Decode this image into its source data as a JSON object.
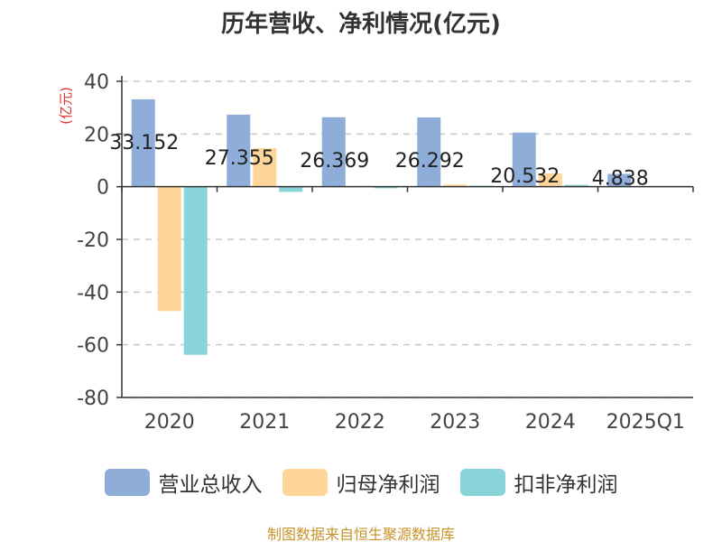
{
  "chart_data": {
    "type": "bar",
    "title": "历年营收、净利情况(亿元)",
    "ylabel": "(亿元)",
    "xlabel": "",
    "categories": [
      "2020",
      "2021",
      "2022",
      "2023",
      "2024",
      "2025Q1"
    ],
    "yticks": [
      "40",
      "20",
      "0",
      "-20",
      "-40",
      "-60",
      "-80"
    ],
    "ylim": [
      -80,
      40
    ],
    "grid": true,
    "legend_position": "bottom",
    "series": [
      {
        "name": "营业总收入",
        "color": "#8fadd9",
        "values": [
          33.152,
          27.355,
          26.369,
          26.292,
          20.532,
          4.838
        ]
      },
      {
        "name": "归母净利润",
        "color": "#ffd699",
        "values": [
          -47.2,
          14.6,
          0.3,
          0.8,
          5.0,
          0.1
        ]
      },
      {
        "name": "扣非净利润",
        "color": "#88d4d8",
        "values": [
          -63.8,
          -2.0,
          -0.6,
          0.4,
          0.7,
          0.1
        ]
      }
    ],
    "data_labels": [
      "33.152",
      "27.355",
      "26.369",
      "26.292",
      "20.532",
      "4.838"
    ]
  },
  "source": "制图数据来自恒生聚源数据库"
}
